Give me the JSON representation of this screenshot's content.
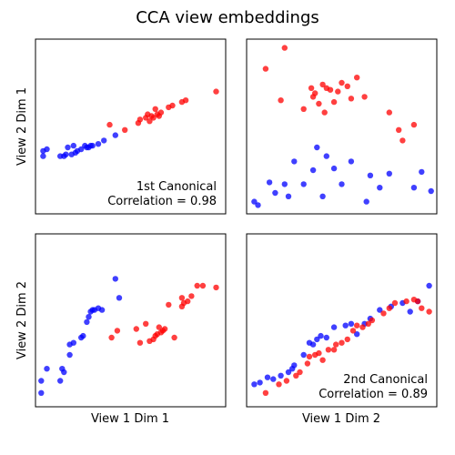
{
  "figure": {
    "title": "CCA view embeddings",
    "row_labels": [
      "View 2 Dim 1",
      "View 2 Dim 2"
    ],
    "col_labels": [
      "View 1 Dim 1",
      "View 1 Dim 2"
    ]
  },
  "colors": {
    "group_a": "#0000ff",
    "group_b": "#ff0000",
    "axes": "#000000",
    "background": "#ffffff"
  },
  "chart_data": [
    {
      "type": "scatter",
      "panel": "top-left",
      "xlabel": "",
      "ylabel": "View 2 Dim 1",
      "xticks": false,
      "yticks": false,
      "xlim": [
        0,
        100
      ],
      "ylim": [
        0,
        100
      ],
      "annotation": [
        "1st Canonical",
        "Correlation = 0.98"
      ],
      "annotation_position": "bottom-right",
      "series": [
        {
          "color": "#0000ff",
          "x": [
            4,
            4,
            6,
            13,
            15,
            16,
            17,
            19,
            20,
            21,
            22,
            24,
            26,
            27,
            28,
            29,
            30,
            33,
            36,
            42
          ],
          "y": [
            33,
            36,
            37,
            33,
            33,
            34,
            38,
            34,
            39,
            35,
            36,
            37,
            39,
            38,
            38,
            39,
            39,
            40,
            42,
            45
          ]
        },
        {
          "color": "#ff0000",
          "x": [
            39,
            47,
            54,
            55,
            58,
            59,
            60,
            61,
            62,
            63,
            64,
            65,
            66,
            70,
            72,
            77,
            79,
            95
          ],
          "y": [
            51,
            48,
            52,
            54,
            55,
            57,
            53,
            56,
            55,
            60,
            57,
            56,
            58,
            61,
            62,
            64,
            65,
            70
          ]
        }
      ]
    },
    {
      "type": "scatter",
      "panel": "top-right",
      "xlabel": "",
      "ylabel": "",
      "xticks": false,
      "yticks": false,
      "xlim": [
        0,
        100
      ],
      "ylim": [
        0,
        100
      ],
      "series": [
        {
          "color": "#0000ff",
          "x": [
            4,
            6,
            12,
            15,
            20,
            22,
            25,
            30,
            35,
            37,
            40,
            42,
            46,
            50,
            55,
            63,
            65,
            70,
            75,
            88,
            92,
            97
          ],
          "y": [
            7,
            5,
            18,
            12,
            17,
            10,
            30,
            17,
            25,
            38,
            10,
            33,
            26,
            17,
            30,
            7,
            22,
            15,
            23,
            15,
            24,
            13
          ]
        },
        {
          "color": "#ff0000",
          "x": [
            10,
            18,
            20,
            30,
            34,
            35,
            36,
            38,
            40,
            41,
            42,
            44,
            46,
            48,
            50,
            53,
            55,
            58,
            62,
            75,
            80,
            82,
            88
          ],
          "y": [
            83,
            65,
            95,
            60,
            72,
            67,
            69,
            63,
            74,
            58,
            72,
            71,
            64,
            70,
            75,
            73,
            66,
            78,
            67,
            58,
            48,
            42,
            51
          ]
        }
      ]
    },
    {
      "type": "scatter",
      "panel": "bottom-left",
      "xlabel": "View 1 Dim 1",
      "ylabel": "View 2 Dim 2",
      "xticks": false,
      "yticks": false,
      "xlim": [
        0,
        100
      ],
      "ylim": [
        0,
        100
      ],
      "series": [
        {
          "color": "#0000ff",
          "x": [
            3,
            3,
            6,
            13,
            14,
            15,
            18,
            18,
            20,
            24,
            25,
            27,
            28,
            29,
            30,
            31,
            33,
            35,
            42,
            44
          ],
          "y": [
            8,
            15,
            22,
            15,
            22,
            20,
            30,
            36,
            37,
            40,
            41,
            49,
            52,
            55,
            56,
            56,
            57,
            56,
            74,
            63
          ]
        },
        {
          "color": "#ff0000",
          "x": [
            40,
            43,
            53,
            55,
            58,
            60,
            62,
            63,
            64,
            65,
            66,
            67,
            68,
            70,
            73,
            77,
            77,
            78,
            80,
            82,
            85,
            88,
            95
          ],
          "y": [
            40,
            44,
            45,
            37,
            48,
            38,
            39,
            41,
            42,
            46,
            43,
            44,
            45,
            59,
            40,
            63,
            58,
            60,
            61,
            64,
            70,
            70,
            69
          ]
        }
      ]
    },
    {
      "type": "scatter",
      "panel": "bottom-right",
      "xlabel": "View 1 Dim 2",
      "ylabel": "",
      "xticks": false,
      "yticks": false,
      "xlim": [
        0,
        100
      ],
      "ylim": [
        0,
        100
      ],
      "annotation": [
        "2nd Canonical",
        "Correlation = 0.89"
      ],
      "annotation_position": "bottom-right",
      "series": [
        {
          "color": "#0000ff",
          "x": [
            4,
            7,
            11,
            14,
            18,
            22,
            24,
            25,
            30,
            33,
            35,
            37,
            39,
            42,
            46,
            52,
            55,
            58,
            62,
            65,
            70,
            76,
            82,
            86,
            90,
            96
          ],
          "y": [
            13,
            14,
            17,
            16,
            18,
            20,
            22,
            24,
            30,
            37,
            36,
            39,
            41,
            40,
            46,
            47,
            48,
            42,
            48,
            51,
            56,
            58,
            60,
            55,
            61,
            70
          ]
        },
        {
          "color": "#ff0000",
          "x": [
            10,
            17,
            21,
            26,
            28,
            32,
            33,
            36,
            38,
            40,
            43,
            46,
            47,
            50,
            53,
            56,
            58,
            61,
            64,
            66,
            72,
            75,
            78,
            84,
            88,
            90,
            92,
            96
          ],
          "y": [
            8,
            13,
            15,
            18,
            20,
            25,
            29,
            30,
            31,
            27,
            33,
            33,
            36,
            37,
            39,
            44,
            47,
            46,
            48,
            50,
            54,
            57,
            60,
            61,
            62,
            61,
            57,
            55
          ]
        }
      ]
    }
  ]
}
